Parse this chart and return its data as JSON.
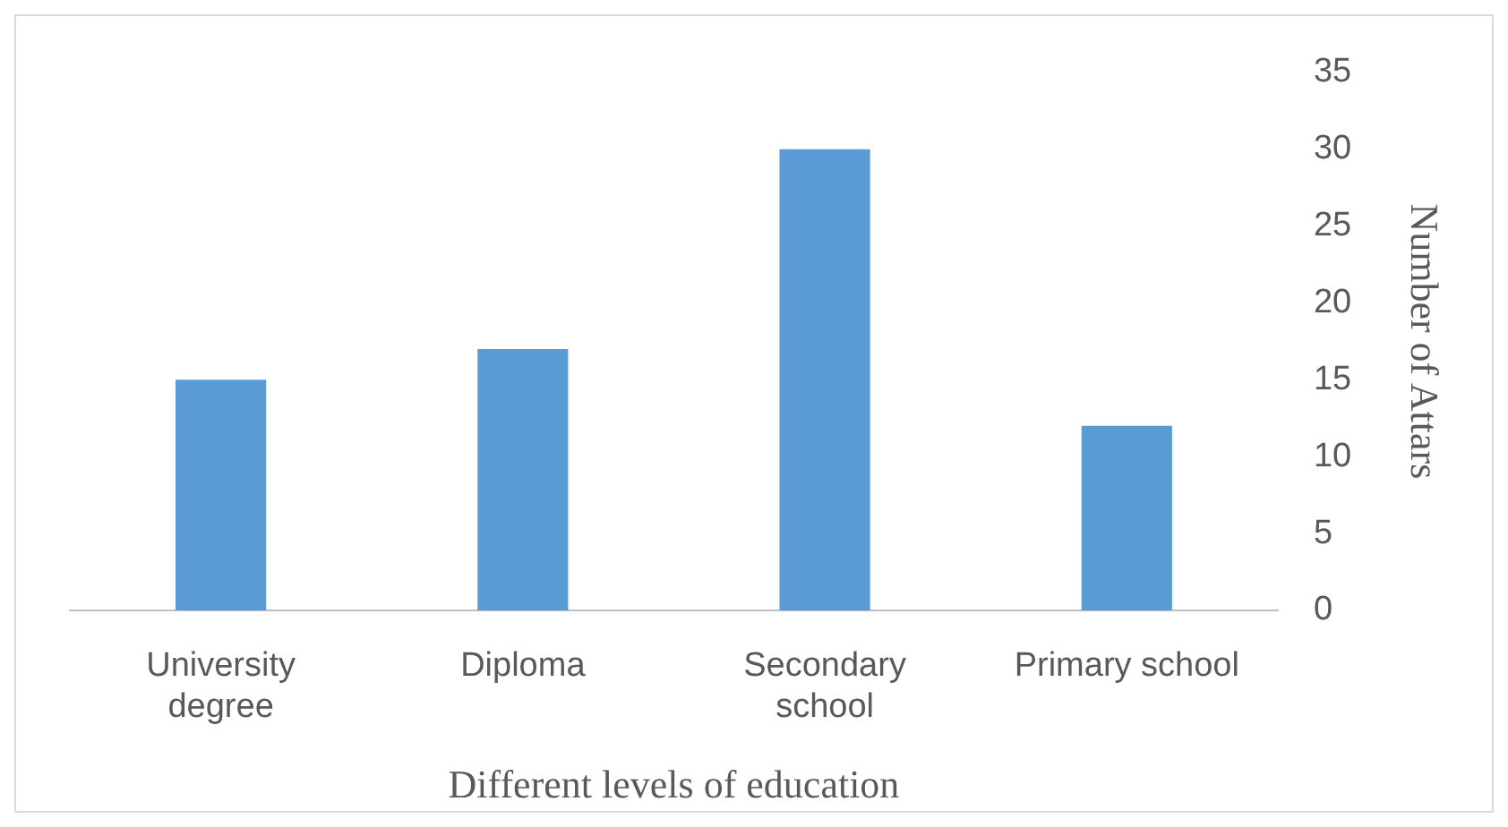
{
  "chart_data": {
    "type": "bar",
    "xlabel": "Different levels of education",
    "ylabel": "Number of Attars",
    "categories": [
      "University degree",
      "Diploma",
      "Secondary school",
      "Primary school"
    ],
    "values": [
      15,
      17,
      30,
      12
    ],
    "color": "#5b9bd5",
    "ylim": [
      0,
      35
    ],
    "yticks": [
      0,
      5,
      10,
      15,
      20,
      25,
      30,
      35
    ],
    "grid": false,
    "legend": false
  }
}
